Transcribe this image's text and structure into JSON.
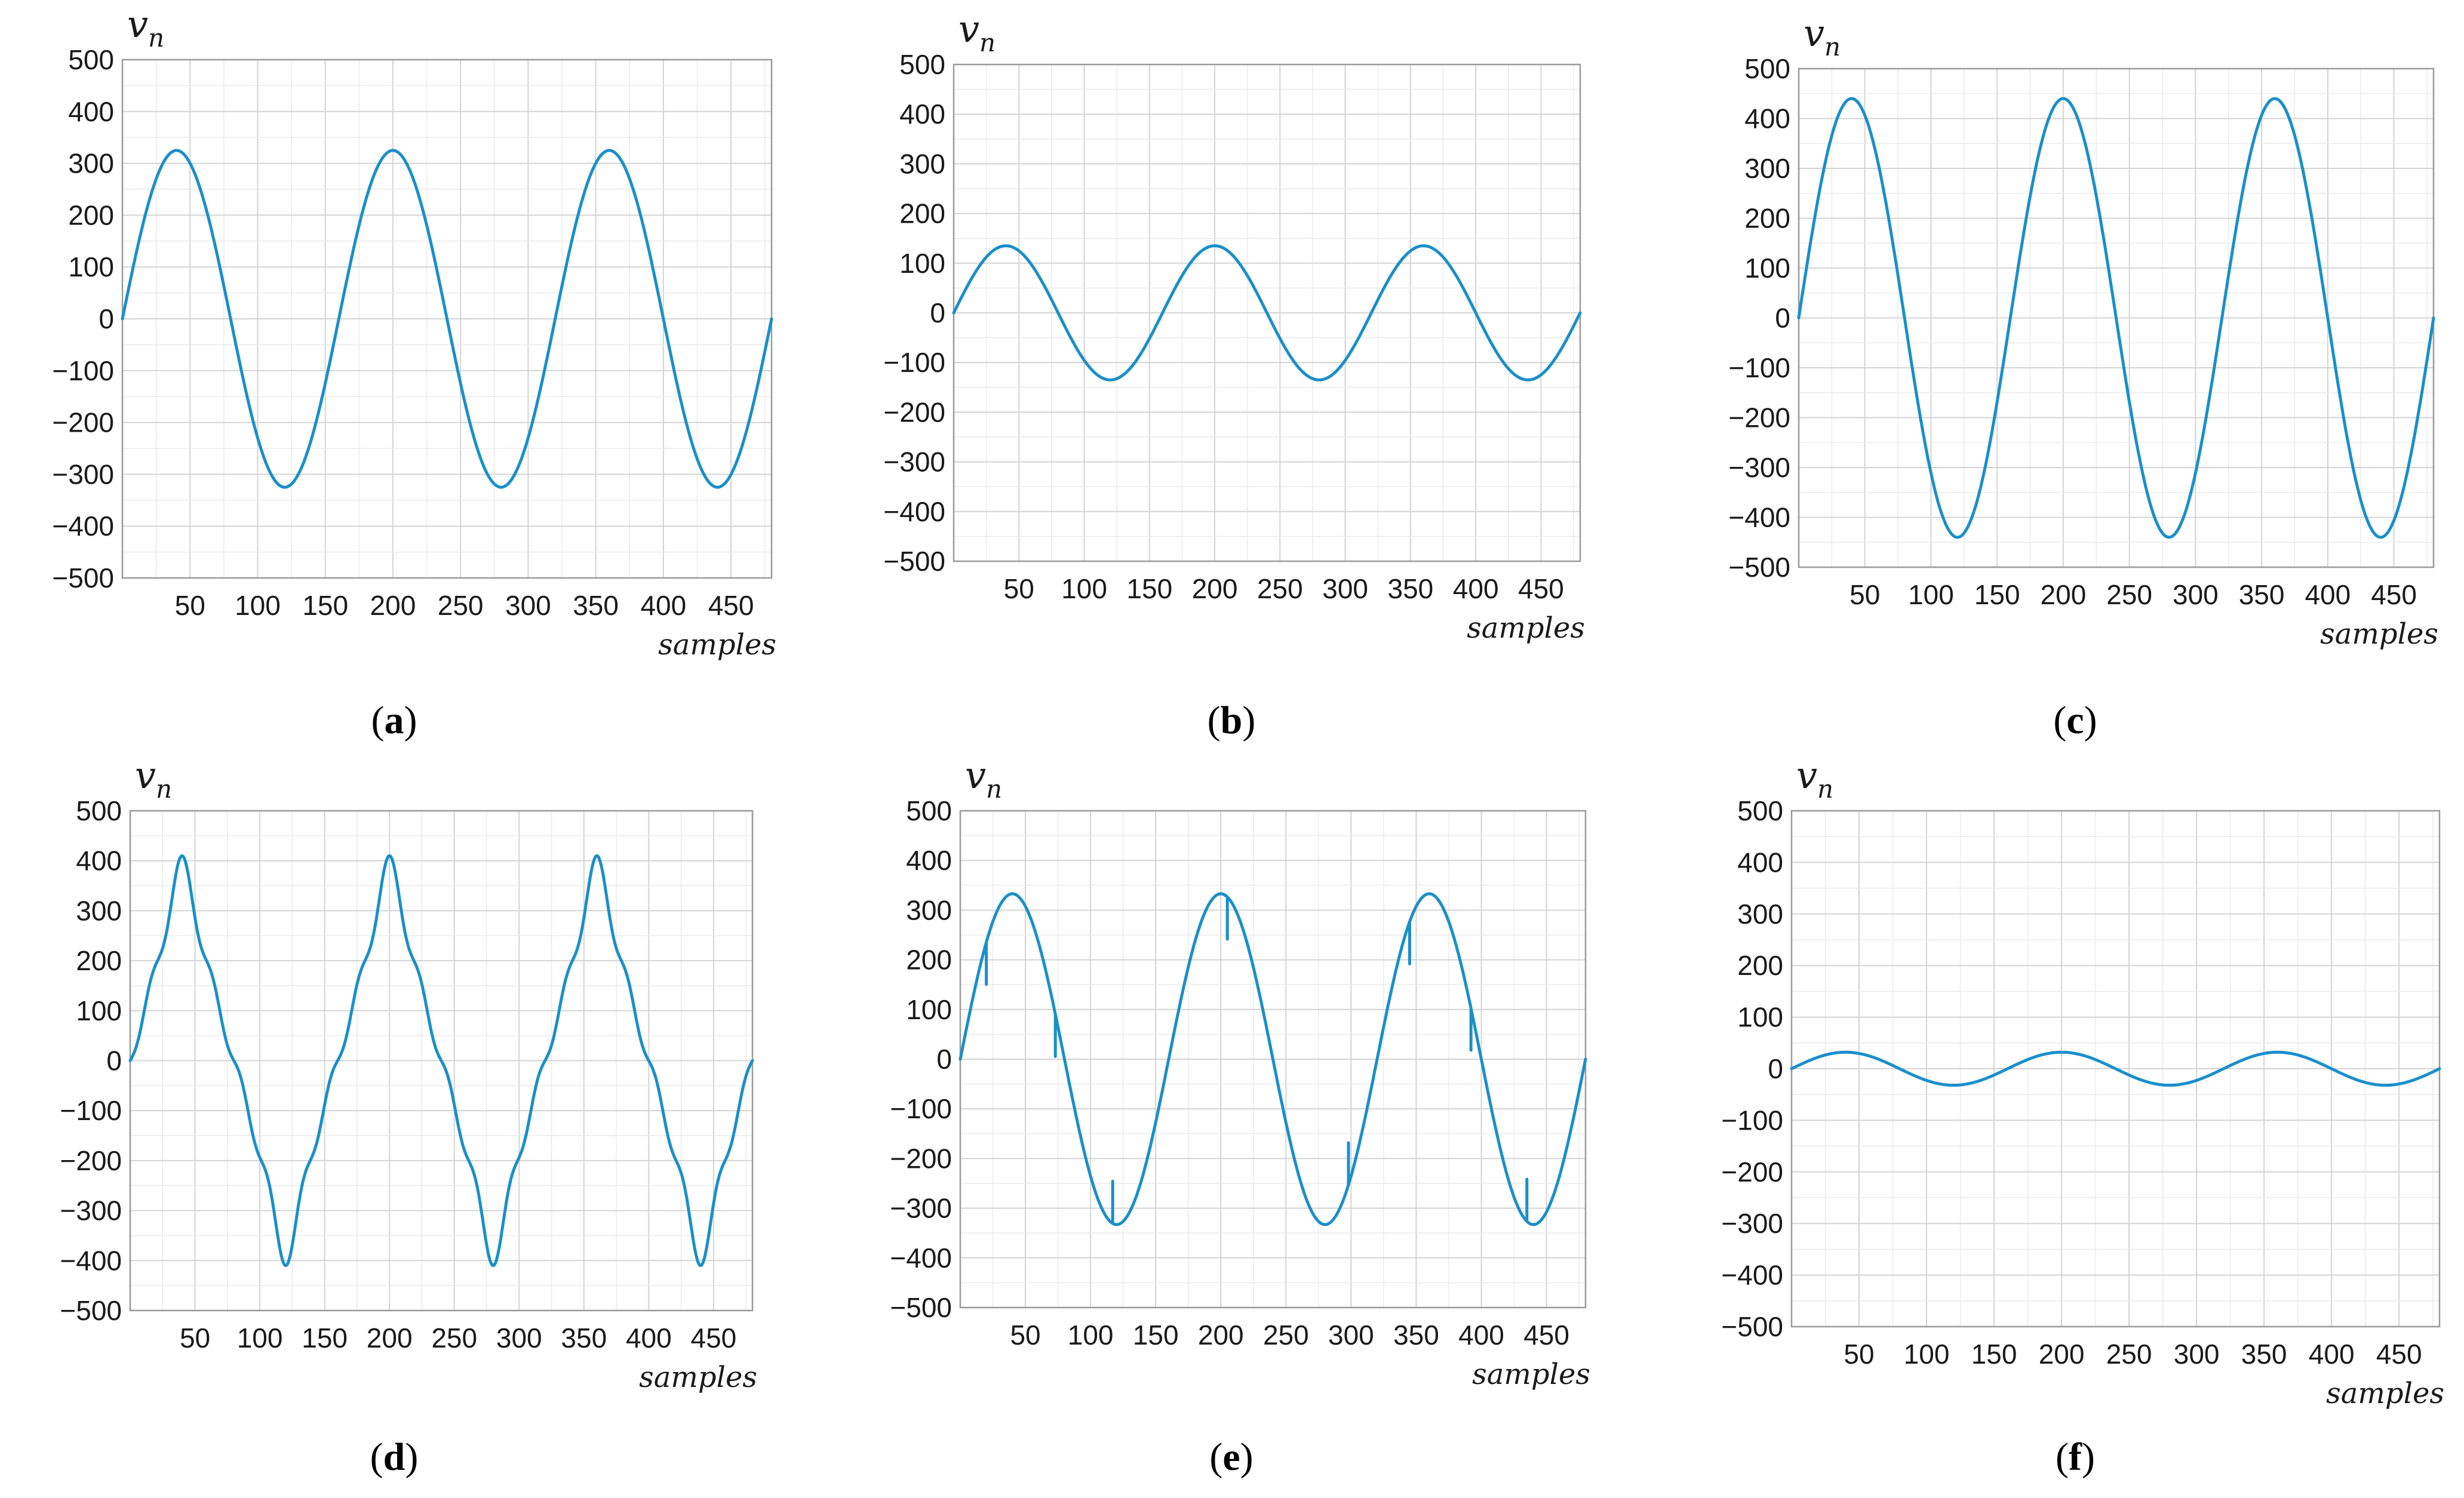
{
  "figure": {
    "panels": [
      "a",
      "b",
      "c",
      "d",
      "e",
      "f"
    ]
  },
  "chart_data": [
    {
      "id": "a",
      "caption": "a",
      "type": "line",
      "waveform": "sine",
      "amplitude": 325,
      "period_samples": 160,
      "x_range": [
        0,
        480
      ],
      "ylim": [
        -500,
        500
      ],
      "x_ticks": [
        50,
        100,
        150,
        200,
        250,
        300,
        350,
        400,
        450
      ],
      "y_ticks": [
        500,
        400,
        300,
        200,
        100,
        0,
        -100,
        -200,
        -300,
        -400,
        -500
      ],
      "xlabel": "samples",
      "ylabel": "v",
      "ylabel_sub": "n",
      "grid": true,
      "line_color": "#1a8fc9"
    },
    {
      "id": "b",
      "caption": "b",
      "type": "line",
      "waveform": "sine",
      "amplitude": 135,
      "period_samples": 160,
      "x_range": [
        0,
        480
      ],
      "ylim": [
        -500,
        500
      ],
      "x_ticks": [
        50,
        100,
        150,
        200,
        250,
        300,
        350,
        400,
        450
      ],
      "y_ticks": [
        500,
        400,
        300,
        200,
        100,
        0,
        -100,
        -200,
        -300,
        -400,
        -500
      ],
      "xlabel": "samples",
      "ylabel": "v",
      "ylabel_sub": "n",
      "grid": true,
      "line_color": "#1a8fc9"
    },
    {
      "id": "c",
      "caption": "c",
      "type": "line",
      "waveform": "sine",
      "amplitude": 440,
      "period_samples": 160,
      "x_range": [
        0,
        480
      ],
      "ylim": [
        -500,
        500
      ],
      "x_ticks": [
        50,
        100,
        150,
        200,
        250,
        300,
        350,
        400,
        450
      ],
      "y_ticks": [
        500,
        400,
        300,
        200,
        100,
        0,
        -100,
        -200,
        -300,
        -400,
        -500
      ],
      "xlabel": "samples",
      "ylabel": "v",
      "ylabel_sub": "n",
      "grid": true,
      "line_color": "#1a8fc9"
    },
    {
      "id": "d",
      "caption": "d",
      "type": "line",
      "waveform": "harmonic",
      "amplitude": 320,
      "harmonic3_amplitude": -48,
      "harmonic5_amplitude": 20,
      "harmonic7_amplitude": -22,
      "period_samples": 160,
      "x_range": [
        0,
        480
      ],
      "ylim": [
        -500,
        500
      ],
      "x_ticks": [
        50,
        100,
        150,
        200,
        250,
        300,
        350,
        400,
        450
      ],
      "y_ticks": [
        500,
        400,
        300,
        200,
        100,
        0,
        -100,
        -200,
        -300,
        -400,
        -500
      ],
      "xlabel": "samples",
      "ylabel": "v",
      "ylabel_sub": "n",
      "grid": true,
      "line_color": "#1a8fc9"
    },
    {
      "id": "e",
      "caption": "e",
      "type": "line",
      "waveform": "notched",
      "amplitude": 333,
      "period_samples": 160,
      "notch_samples": [
        20,
        73,
        117,
        205,
        298,
        345,
        392,
        435
      ],
      "notch_depth": 85,
      "x_range": [
        0,
        480
      ],
      "ylim": [
        -500,
        500
      ],
      "x_ticks": [
        50,
        100,
        150,
        200,
        250,
        300,
        350,
        400,
        450
      ],
      "y_ticks": [
        500,
        400,
        300,
        200,
        100,
        0,
        -100,
        -200,
        -300,
        -400,
        -500
      ],
      "xlabel": "samples",
      "ylabel": "v",
      "ylabel_sub": "n",
      "grid": true,
      "line_color": "#1a8fc9"
    },
    {
      "id": "f",
      "caption": "f",
      "type": "line",
      "waveform": "sine",
      "amplitude": 32,
      "period_samples": 160,
      "x_range": [
        0,
        480
      ],
      "ylim": [
        -500,
        500
      ],
      "x_ticks": [
        50,
        100,
        150,
        200,
        250,
        300,
        350,
        400,
        450
      ],
      "y_ticks": [
        500,
        400,
        300,
        200,
        100,
        0,
        -100,
        -200,
        -300,
        -400,
        -500
      ],
      "xlabel": "samples",
      "ylabel": "v",
      "ylabel_sub": "n",
      "grid": true,
      "line_color": "#1a8fc9"
    }
  ]
}
